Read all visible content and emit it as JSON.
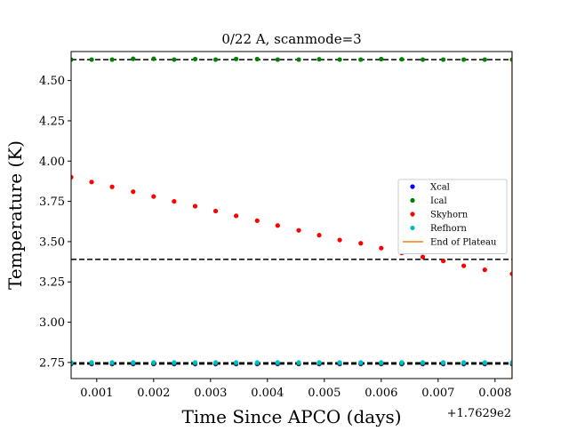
{
  "chart_data": {
    "type": "scatter",
    "title": "0/22 A, scanmode=3",
    "xlabel": "Time Since APCO (days)",
    "ylabel": "Temperature (K)",
    "x_offset_label": "+1.7629e2",
    "xlim": [
      0.00055,
      0.0083
    ],
    "ylim": [
      2.65,
      4.68
    ],
    "x_ticks": [
      0.001,
      0.002,
      0.003,
      0.004,
      0.005,
      0.006,
      0.007,
      0.008
    ],
    "x_tick_labels": [
      "0.001",
      "0.002",
      "0.003",
      "0.004",
      "0.005",
      "0.006",
      "0.007",
      "0.008"
    ],
    "y_ticks": [
      2.75,
      3.0,
      3.25,
      3.5,
      3.75,
      4.0,
      4.25,
      4.5
    ],
    "y_tick_labels": [
      "2.75",
      "3.00",
      "3.25",
      "3.50",
      "3.75",
      "4.00",
      "4.25",
      "4.50"
    ],
    "grid": false,
    "legend_position": "center-right",
    "series": [
      {
        "name": "Xcal",
        "color": "#0000ff",
        "kind": "points",
        "x": [
          0.00055,
          0.00091,
          0.00127,
          0.00164,
          0.002,
          0.00236,
          0.00273,
          0.00309,
          0.00345,
          0.00382,
          0.00418,
          0.00455,
          0.00491,
          0.00527,
          0.00564,
          0.006,
          0.00636,
          0.00673,
          0.00709,
          0.00745,
          0.00782,
          0.0083
        ],
        "y": [
          2.74,
          2.74,
          2.74,
          2.74,
          2.74,
          2.74,
          2.74,
          2.74,
          2.74,
          2.74,
          2.74,
          2.74,
          2.74,
          2.74,
          2.74,
          2.74,
          2.74,
          2.74,
          2.74,
          2.74,
          2.74,
          2.74
        ]
      },
      {
        "name": "Ical",
        "color": "#008000",
        "kind": "points",
        "x": [
          0.00055,
          0.00091,
          0.00127,
          0.00164,
          0.002,
          0.00236,
          0.00273,
          0.00309,
          0.00345,
          0.00382,
          0.00418,
          0.00455,
          0.00491,
          0.00527,
          0.00564,
          0.006,
          0.00636,
          0.00673,
          0.00709,
          0.00745,
          0.00782,
          0.0083
        ],
        "y": [
          4.63,
          4.63,
          4.63,
          4.635,
          4.635,
          4.63,
          4.633,
          4.63,
          4.634,
          4.633,
          4.63,
          4.63,
          4.632,
          4.63,
          4.63,
          4.633,
          4.632,
          4.63,
          4.63,
          4.63,
          4.63,
          4.63
        ],
        "y_alt": [
          2.745,
          2.745,
          2.745,
          2.745,
          2.745,
          2.745,
          2.745,
          2.745,
          2.745,
          2.745,
          2.745,
          2.745,
          2.745,
          2.745,
          2.745,
          2.745,
          2.745,
          2.745,
          2.745,
          2.745,
          2.745,
          2.745
        ]
      },
      {
        "name": "Skyhorn",
        "color": "#ff0000",
        "kind": "points",
        "x": [
          0.00055,
          0.00091,
          0.00127,
          0.00164,
          0.002,
          0.00236,
          0.00273,
          0.00309,
          0.00345,
          0.00382,
          0.00418,
          0.00455,
          0.00491,
          0.00527,
          0.00564,
          0.006,
          0.00636,
          0.00673,
          0.00709,
          0.00745,
          0.00782,
          0.0083
        ],
        "y": [
          3.9,
          3.87,
          3.84,
          3.81,
          3.78,
          3.75,
          3.72,
          3.69,
          3.66,
          3.63,
          3.6,
          3.57,
          3.54,
          3.51,
          3.49,
          3.46,
          3.43,
          3.405,
          3.38,
          3.35,
          3.325,
          3.3
        ]
      },
      {
        "name": "Refhorn",
        "color": "#00bfbf",
        "kind": "points",
        "x": [
          0.00055,
          0.00091,
          0.00127,
          0.00164,
          0.002,
          0.00236,
          0.00273,
          0.00309,
          0.00345,
          0.00382,
          0.00418,
          0.00455,
          0.00491,
          0.00527,
          0.00564,
          0.006,
          0.00636,
          0.00673,
          0.00709,
          0.00745,
          0.00782,
          0.0083
        ],
        "y": [
          2.75,
          2.75,
          2.75,
          2.75,
          2.75,
          2.75,
          2.75,
          2.75,
          2.75,
          2.75,
          2.75,
          2.75,
          2.75,
          2.75,
          2.75,
          2.75,
          2.75,
          2.75,
          2.75,
          2.75,
          2.75,
          2.75
        ]
      },
      {
        "name": "End of Plateau",
        "color": "#ff7f0e",
        "kind": "vline",
        "x": [
          0.0083
        ]
      }
    ],
    "hlines": [
      {
        "y": 4.63,
        "color": "#000000",
        "style": "dashed"
      },
      {
        "y": 3.39,
        "color": "#000000",
        "style": "dashed"
      },
      {
        "y": 2.74,
        "color": "#000000",
        "style": "dashed"
      },
      {
        "y": 2.748,
        "color": "#000000",
        "style": "dashed"
      }
    ]
  }
}
